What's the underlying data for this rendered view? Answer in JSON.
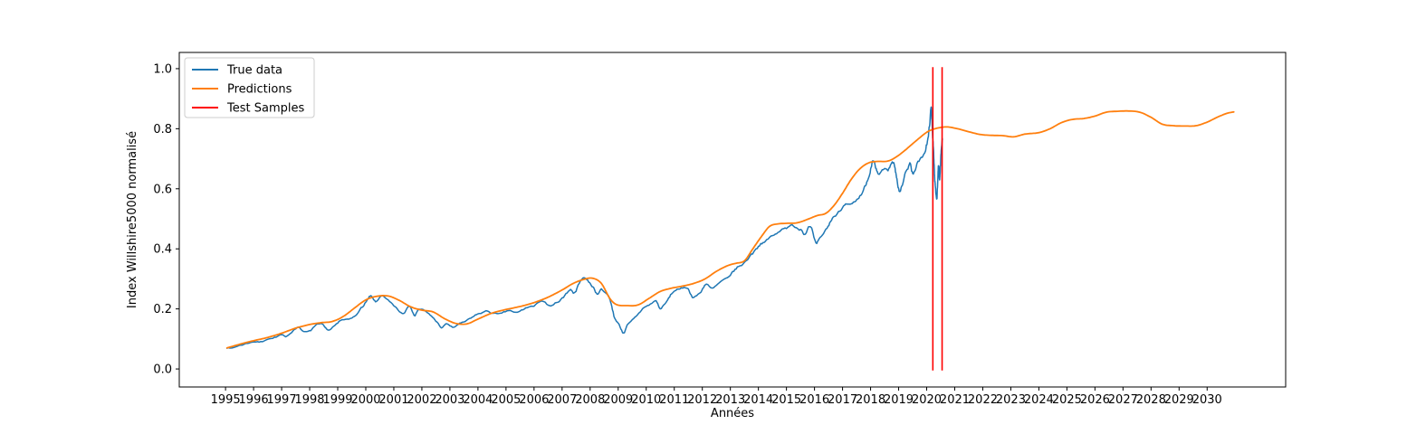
{
  "chart_data": {
    "type": "line",
    "title": "",
    "xlabel": "Années",
    "ylabel": "Index Willshire5000 normalisé",
    "xlim": [
      1993.35,
      2032.8
    ],
    "ylim": [
      -0.06,
      1.054
    ],
    "xticks": [
      1995,
      1996,
      1997,
      1998,
      1999,
      2000,
      2001,
      2002,
      2003,
      2004,
      2005,
      2006,
      2007,
      2008,
      2009,
      2010,
      2011,
      2012,
      2013,
      2014,
      2015,
      2016,
      2017,
      2018,
      2019,
      2020,
      2021,
      2022,
      2023,
      2024,
      2025,
      2026,
      2027,
      2028,
      2029,
      2030
    ],
    "yticks": [
      0.0,
      0.2,
      0.4,
      0.6,
      0.8,
      1.0
    ],
    "grid": false,
    "legend": {
      "position": "upper-left",
      "items": [
        {
          "label": "True data",
          "color": "#1f77b4"
        },
        {
          "label": "Predictions",
          "color": "#ff7f0e"
        },
        {
          "label": "Test Samples",
          "color": "#ff0000"
        }
      ]
    },
    "series": [
      {
        "name": "True data",
        "color": "#1f77b4",
        "width": 1.5,
        "jitter": {
          "base": 0.003,
          "scale": 0.012
        },
        "points": [
          [
            1995.05,
            0.067
          ],
          [
            1995.3,
            0.072
          ],
          [
            1995.6,
            0.08
          ],
          [
            1995.9,
            0.087
          ],
          [
            1996.2,
            0.09
          ],
          [
            1996.5,
            0.096
          ],
          [
            1996.8,
            0.106
          ],
          [
            1997.0,
            0.117
          ],
          [
            1997.2,
            0.111
          ],
          [
            1997.45,
            0.127
          ],
          [
            1997.6,
            0.138
          ],
          [
            1997.78,
            0.127
          ],
          [
            1998.0,
            0.125
          ],
          [
            1998.2,
            0.143
          ],
          [
            1998.45,
            0.152
          ],
          [
            1998.65,
            0.131
          ],
          [
            1998.9,
            0.151
          ],
          [
            1999.1,
            0.162
          ],
          [
            1999.35,
            0.168
          ],
          [
            1999.6,
            0.178
          ],
          [
            1999.8,
            0.196
          ],
          [
            2000.0,
            0.222
          ],
          [
            2000.18,
            0.248
          ],
          [
            2000.35,
            0.227
          ],
          [
            2000.55,
            0.242
          ],
          [
            2000.75,
            0.236
          ],
          [
            2000.95,
            0.221
          ],
          [
            2001.15,
            0.199
          ],
          [
            2001.35,
            0.185
          ],
          [
            2001.55,
            0.207
          ],
          [
            2001.72,
            0.176
          ],
          [
            2001.9,
            0.197
          ],
          [
            2002.1,
            0.195
          ],
          [
            2002.3,
            0.182
          ],
          [
            2002.5,
            0.16
          ],
          [
            2002.7,
            0.139
          ],
          [
            2002.85,
            0.151
          ],
          [
            2003.0,
            0.145
          ],
          [
            2003.15,
            0.141
          ],
          [
            2003.35,
            0.152
          ],
          [
            2003.6,
            0.165
          ],
          [
            2003.85,
            0.178
          ],
          [
            2004.1,
            0.187
          ],
          [
            2004.35,
            0.192
          ],
          [
            2004.6,
            0.184
          ],
          [
            2004.85,
            0.191
          ],
          [
            2005.1,
            0.196
          ],
          [
            2005.35,
            0.191
          ],
          [
            2005.6,
            0.199
          ],
          [
            2005.85,
            0.208
          ],
          [
            2006.1,
            0.217
          ],
          [
            2006.35,
            0.227
          ],
          [
            2006.55,
            0.212
          ],
          [
            2006.8,
            0.225
          ],
          [
            2007.05,
            0.239
          ],
          [
            2007.3,
            0.263
          ],
          [
            2007.45,
            0.253
          ],
          [
            2007.65,
            0.292
          ],
          [
            2007.8,
            0.301
          ],
          [
            2007.95,
            0.289
          ],
          [
            2008.1,
            0.272
          ],
          [
            2008.25,
            0.251
          ],
          [
            2008.4,
            0.263
          ],
          [
            2008.55,
            0.253
          ],
          [
            2008.7,
            0.232
          ],
          [
            2008.85,
            0.176
          ],
          [
            2009.0,
            0.152
          ],
          [
            2009.1,
            0.134
          ],
          [
            2009.2,
            0.118
          ],
          [
            2009.35,
            0.149
          ],
          [
            2009.55,
            0.172
          ],
          [
            2009.75,
            0.188
          ],
          [
            2009.95,
            0.206
          ],
          [
            2010.15,
            0.216
          ],
          [
            2010.35,
            0.227
          ],
          [
            2010.5,
            0.201
          ],
          [
            2010.7,
            0.223
          ],
          [
            2010.9,
            0.251
          ],
          [
            2011.1,
            0.263
          ],
          [
            2011.3,
            0.274
          ],
          [
            2011.5,
            0.263
          ],
          [
            2011.65,
            0.236
          ],
          [
            2011.8,
            0.246
          ],
          [
            2011.95,
            0.257
          ],
          [
            2012.15,
            0.281
          ],
          [
            2012.35,
            0.272
          ],
          [
            2012.55,
            0.286
          ],
          [
            2012.8,
            0.305
          ],
          [
            2013.0,
            0.317
          ],
          [
            2013.25,
            0.339
          ],
          [
            2013.5,
            0.353
          ],
          [
            2013.75,
            0.379
          ],
          [
            2014.0,
            0.403
          ],
          [
            2014.25,
            0.429
          ],
          [
            2014.5,
            0.445
          ],
          [
            2014.75,
            0.459
          ],
          [
            2015.0,
            0.466
          ],
          [
            2015.25,
            0.475
          ],
          [
            2015.5,
            0.465
          ],
          [
            2015.65,
            0.443
          ],
          [
            2015.85,
            0.469
          ],
          [
            2016.05,
            0.426
          ],
          [
            2016.2,
            0.446
          ],
          [
            2016.45,
            0.472
          ],
          [
            2016.7,
            0.508
          ],
          [
            2016.95,
            0.527
          ],
          [
            2017.15,
            0.545
          ],
          [
            2017.35,
            0.557
          ],
          [
            2017.55,
            0.576
          ],
          [
            2017.75,
            0.601
          ],
          [
            2017.95,
            0.648
          ],
          [
            2018.1,
            0.697
          ],
          [
            2018.28,
            0.649
          ],
          [
            2018.45,
            0.669
          ],
          [
            2018.62,
            0.661
          ],
          [
            2018.8,
            0.688
          ],
          [
            2018.95,
            0.625
          ],
          [
            2019.05,
            0.586
          ],
          [
            2019.2,
            0.639
          ],
          [
            2019.4,
            0.679
          ],
          [
            2019.5,
            0.653
          ],
          [
            2019.65,
            0.683
          ],
          [
            2019.8,
            0.701
          ],
          [
            2019.95,
            0.729
          ],
          [
            2020.08,
            0.792
          ],
          [
            2020.16,
            0.862
          ],
          [
            2020.24,
            0.728
          ],
          [
            2020.3,
            0.618
          ],
          [
            2020.36,
            0.568
          ],
          [
            2020.42,
            0.672
          ],
          [
            2020.46,
            0.636
          ],
          [
            2020.52,
            0.724
          ],
          [
            2020.56,
            0.758
          ]
        ]
      },
      {
        "name": "Predictions",
        "color": "#ff7f0e",
        "width": 1.8,
        "points": [
          [
            1995.05,
            0.07
          ],
          [
            1995.5,
            0.082
          ],
          [
            1996.0,
            0.094
          ],
          [
            1996.5,
            0.105
          ],
          [
            1997.0,
            0.119
          ],
          [
            1997.5,
            0.136
          ],
          [
            1998.0,
            0.148
          ],
          [
            1998.4,
            0.154
          ],
          [
            1998.8,
            0.158
          ],
          [
            1999.2,
            0.175
          ],
          [
            1999.6,
            0.203
          ],
          [
            2000.0,
            0.23
          ],
          [
            2000.4,
            0.242
          ],
          [
            2000.8,
            0.243
          ],
          [
            2001.2,
            0.228
          ],
          [
            2001.6,
            0.207
          ],
          [
            2002.0,
            0.196
          ],
          [
            2002.4,
            0.19
          ],
          [
            2002.8,
            0.168
          ],
          [
            2003.2,
            0.152
          ],
          [
            2003.6,
            0.15
          ],
          [
            2004.0,
            0.166
          ],
          [
            2004.5,
            0.186
          ],
          [
            2005.0,
            0.198
          ],
          [
            2005.5,
            0.208
          ],
          [
            2006.0,
            0.221
          ],
          [
            2006.5,
            0.239
          ],
          [
            2007.0,
            0.263
          ],
          [
            2007.4,
            0.285
          ],
          [
            2007.8,
            0.299
          ],
          [
            2008.1,
            0.302
          ],
          [
            2008.4,
            0.285
          ],
          [
            2008.7,
            0.235
          ],
          [
            2008.95,
            0.214
          ],
          [
            2009.3,
            0.211
          ],
          [
            2009.7,
            0.213
          ],
          [
            2010.1,
            0.235
          ],
          [
            2010.5,
            0.258
          ],
          [
            2010.9,
            0.269
          ],
          [
            2011.3,
            0.276
          ],
          [
            2011.7,
            0.285
          ],
          [
            2012.1,
            0.3
          ],
          [
            2012.5,
            0.325
          ],
          [
            2012.9,
            0.344
          ],
          [
            2013.2,
            0.352
          ],
          [
            2013.5,
            0.36
          ],
          [
            2013.8,
            0.4
          ],
          [
            2014.1,
            0.44
          ],
          [
            2014.4,
            0.475
          ],
          [
            2014.7,
            0.483
          ],
          [
            2015.0,
            0.485
          ],
          [
            2015.4,
            0.487
          ],
          [
            2015.8,
            0.5
          ],
          [
            2016.1,
            0.511
          ],
          [
            2016.4,
            0.518
          ],
          [
            2016.7,
            0.545
          ],
          [
            2017.0,
            0.585
          ],
          [
            2017.3,
            0.63
          ],
          [
            2017.6,
            0.665
          ],
          [
            2017.9,
            0.685
          ],
          [
            2018.2,
            0.691
          ],
          [
            2018.6,
            0.692
          ],
          [
            2018.9,
            0.705
          ],
          [
            2019.2,
            0.726
          ],
          [
            2019.6,
            0.758
          ],
          [
            2020.0,
            0.788
          ],
          [
            2020.3,
            0.8
          ],
          [
            2020.7,
            0.806
          ],
          [
            2021.1,
            0.8
          ],
          [
            2021.5,
            0.79
          ],
          [
            2021.9,
            0.781
          ],
          [
            2022.3,
            0.778
          ],
          [
            2022.7,
            0.777
          ],
          [
            2023.1,
            0.773
          ],
          [
            2023.5,
            0.782
          ],
          [
            2024.0,
            0.787
          ],
          [
            2024.4,
            0.8
          ],
          [
            2024.8,
            0.82
          ],
          [
            2025.2,
            0.831
          ],
          [
            2025.6,
            0.834
          ],
          [
            2026.0,
            0.842
          ],
          [
            2026.4,
            0.855
          ],
          [
            2026.8,
            0.858
          ],
          [
            2027.2,
            0.859
          ],
          [
            2027.6,
            0.855
          ],
          [
            2028.0,
            0.838
          ],
          [
            2028.4,
            0.815
          ],
          [
            2028.8,
            0.81
          ],
          [
            2029.2,
            0.809
          ],
          [
            2029.6,
            0.81
          ],
          [
            2030.0,
            0.822
          ],
          [
            2030.4,
            0.84
          ],
          [
            2030.7,
            0.851
          ],
          [
            2030.95,
            0.856
          ]
        ]
      }
    ],
    "vlines": [
      {
        "x": 2020.22,
        "y0": -0.005,
        "y1": 1.005,
        "color": "#ff0000",
        "width": 1.6
      },
      {
        "x": 2020.55,
        "y0": -0.005,
        "y1": 1.005,
        "color": "#ff0000",
        "width": 1.6
      }
    ]
  }
}
